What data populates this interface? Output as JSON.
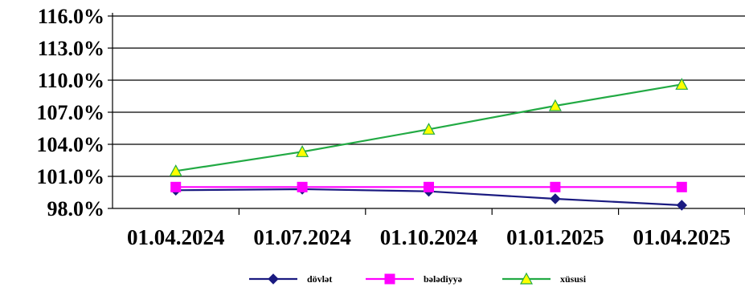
{
  "chart_data": {
    "type": "line",
    "title": "",
    "xlabel": "",
    "ylabel": "",
    "categories": [
      "01.04.2024",
      "01.07.2024",
      "01.10.2024",
      "01.01.2025",
      "01.04.2025"
    ],
    "y_ticks": [
      "98.0%",
      "101.0%",
      "104.0%",
      "107.0%",
      "110.0%",
      "113.0%",
      "116.0%"
    ],
    "ylim": [
      98,
      116
    ],
    "grid": true,
    "legend_position": "bottom",
    "series": [
      {
        "name": "dövlət",
        "color": "#1a1a80",
        "marker": "diamond",
        "values": [
          99.7,
          99.8,
          99.6,
          98.9,
          98.3
        ]
      },
      {
        "name": "bələdiyyə",
        "color": "#ff00ff",
        "marker": "square",
        "values": [
          100.0,
          100.0,
          100.0,
          100.0,
          100.0
        ]
      },
      {
        "name": "xüsusi",
        "color": "#22aa44",
        "marker": "triangle",
        "marker_fill": "#ffff00",
        "values": [
          101.5,
          103.3,
          105.4,
          107.6,
          109.6
        ]
      }
    ]
  }
}
